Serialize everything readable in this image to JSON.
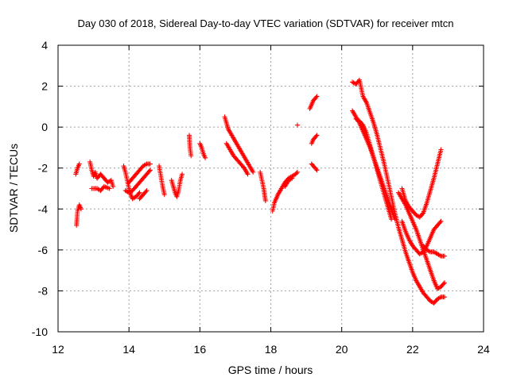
{
  "chart_data": {
    "type": "scatter",
    "title": "Day 030 of 2018, Sidereal Day-to-day VTEC variation (SDTVAR) for receiver mtcn",
    "xlabel": "GPS time / hours",
    "ylabel": "SDTVAR / TECUs",
    "xlim": [
      12,
      24
    ],
    "ylim": [
      -10,
      4
    ],
    "xticks": [
      12,
      14,
      16,
      18,
      20,
      22,
      24
    ],
    "yticks": [
      -10,
      -8,
      -6,
      -4,
      -2,
      0,
      2,
      4
    ],
    "xtick_labels": [
      "12",
      "14",
      "16",
      "18",
      "20",
      "22",
      "24"
    ],
    "ytick_labels": [
      "-10",
      "-8",
      "-6",
      "-4",
      "-2",
      "0",
      "2",
      "4"
    ],
    "grid": true,
    "marker": "+",
    "series": [
      {
        "name": "SDTVAR",
        "color": "#ff0000",
        "segments": [
          [
            [
              12.5,
              -2.3
            ],
            [
              12.55,
              -2.0
            ],
            [
              12.6,
              -1.8
            ]
          ],
          [
            [
              12.52,
              -4.8
            ],
            [
              12.55,
              -4.1
            ],
            [
              12.6,
              -3.8
            ],
            [
              12.65,
              -4.0
            ]
          ],
          [
            [
              12.9,
              -1.7
            ],
            [
              12.95,
              -2.1
            ],
            [
              13.0,
              -2.4
            ],
            [
              13.05,
              -2.2
            ],
            [
              13.1,
              -2.5
            ],
            [
              13.2,
              -2.3
            ],
            [
              13.3,
              -2.5
            ],
            [
              13.4,
              -2.7
            ],
            [
              13.5,
              -2.6
            ],
            [
              13.55,
              -2.9
            ]
          ],
          [
            [
              12.95,
              -3.0
            ],
            [
              13.1,
              -3.0
            ],
            [
              13.2,
              -3.1
            ],
            [
              13.3,
              -2.9
            ],
            [
              13.45,
              -3.0
            ]
          ],
          [
            [
              13.85,
              -1.9
            ],
            [
              13.9,
              -2.2
            ],
            [
              13.95,
              -2.6
            ],
            [
              14.0,
              -3.0
            ],
            [
              14.05,
              -3.3
            ],
            [
              14.1,
              -3.5
            ],
            [
              14.2,
              -3.4
            ],
            [
              14.3,
              -3.2
            ]
          ],
          [
            [
              13.9,
              -3.1
            ],
            [
              14.0,
              -3.2
            ],
            [
              14.1,
              -3.1
            ],
            [
              14.2,
              -2.9
            ],
            [
              14.3,
              -2.7
            ],
            [
              14.4,
              -2.5
            ],
            [
              14.5,
              -2.3
            ],
            [
              14.6,
              -2.1
            ]
          ],
          [
            [
              14.0,
              -2.7
            ],
            [
              14.1,
              -2.5
            ],
            [
              14.2,
              -2.3
            ],
            [
              14.3,
              -2.1
            ],
            [
              14.4,
              -1.9
            ],
            [
              14.5,
              -1.8
            ],
            [
              14.6,
              -1.8
            ]
          ],
          [
            [
              14.3,
              -3.5
            ],
            [
              14.4,
              -3.3
            ],
            [
              14.5,
              -3.1
            ]
          ],
          [
            [
              14.85,
              -1.9
            ],
            [
              14.9,
              -2.4
            ],
            [
              14.95,
              -2.9
            ],
            [
              15.0,
              -3.3
            ]
          ],
          [
            [
              15.2,
              -2.6
            ],
            [
              15.25,
              -2.9
            ],
            [
              15.3,
              -3.2
            ],
            [
              15.35,
              -3.4
            ],
            [
              15.4,
              -3.1
            ],
            [
              15.45,
              -2.6
            ],
            [
              15.5,
              -2.3
            ]
          ],
          [
            [
              15.7,
              -0.4
            ],
            [
              15.72,
              -1.0
            ],
            [
              15.75,
              -1.4
            ]
          ],
          [
            [
              16.0,
              -0.8
            ],
            [
              16.05,
              -1.0
            ],
            [
              16.1,
              -1.3
            ],
            [
              16.15,
              -1.5
            ]
          ],
          [
            [
              16.7,
              0.5
            ],
            [
              16.75,
              0.2
            ],
            [
              16.8,
              -0.1
            ],
            [
              16.9,
              -0.4
            ],
            [
              17.0,
              -0.7
            ],
            [
              17.1,
              -1.0
            ],
            [
              17.2,
              -1.3
            ],
            [
              17.3,
              -1.6
            ],
            [
              17.4,
              -1.9
            ],
            [
              17.5,
              -2.2
            ]
          ],
          [
            [
              16.75,
              -0.8
            ],
            [
              16.85,
              -1.1
            ],
            [
              16.95,
              -1.4
            ],
            [
              17.05,
              -1.6
            ],
            [
              17.15,
              -1.8
            ],
            [
              17.25,
              -2.0
            ],
            [
              17.35,
              -2.3
            ]
          ],
          [
            [
              17.7,
              -2.2
            ],
            [
              17.75,
              -2.6
            ],
            [
              17.8,
              -3.0
            ],
            [
              17.85,
              -3.6
            ]
          ],
          [
            [
              18.05,
              -4.1
            ],
            [
              18.1,
              -3.7
            ],
            [
              18.2,
              -3.3
            ],
            [
              18.3,
              -3.0
            ],
            [
              18.4,
              -2.7
            ],
            [
              18.5,
              -2.5
            ],
            [
              18.6,
              -2.4
            ],
            [
              18.7,
              -2.3
            ],
            [
              18.75,
              -2.2
            ]
          ],
          [
            [
              18.4,
              -2.9
            ],
            [
              18.5,
              -2.6
            ],
            [
              18.6,
              -2.5
            ]
          ],
          [
            [
              18.75,
              0.1
            ]
          ],
          [
            [
              19.1,
              0.9
            ],
            [
              19.15,
              1.1
            ],
            [
              19.2,
              1.3
            ],
            [
              19.3,
              1.5
            ]
          ],
          [
            [
              19.15,
              -0.8
            ],
            [
              19.2,
              -0.6
            ],
            [
              19.25,
              -0.5
            ],
            [
              19.3,
              -0.4
            ]
          ],
          [
            [
              19.15,
              -1.8
            ],
            [
              19.2,
              -1.9
            ],
            [
              19.25,
              -2.0
            ],
            [
              19.3,
              -2.1
            ]
          ],
          [
            [
              20.3,
              2.2
            ],
            [
              20.4,
              2.1
            ],
            [
              20.5,
              2.3
            ],
            [
              20.55,
              1.9
            ],
            [
              20.6,
              1.5
            ],
            [
              20.7,
              1.2
            ],
            [
              20.8,
              0.7
            ],
            [
              20.9,
              0.2
            ],
            [
              21.0,
              -0.4
            ],
            [
              21.1,
              -1.1
            ],
            [
              21.2,
              -1.8
            ],
            [
              21.3,
              -2.6
            ],
            [
              21.4,
              -3.4
            ],
            [
              21.5,
              -4.2
            ],
            [
              21.6,
              -4.9
            ],
            [
              21.7,
              -5.5
            ],
            [
              21.8,
              -6.1
            ],
            [
              21.9,
              -6.6
            ],
            [
              22.0,
              -7.1
            ],
            [
              22.1,
              -7.5
            ],
            [
              22.2,
              -7.8
            ],
            [
              22.3,
              -8.1
            ],
            [
              22.4,
              -8.3
            ],
            [
              22.5,
              -8.5
            ],
            [
              22.6,
              -8.6
            ],
            [
              22.7,
              -8.4
            ],
            [
              22.8,
              -8.3
            ],
            [
              22.9,
              -8.3
            ]
          ],
          [
            [
              20.3,
              0.8
            ],
            [
              20.4,
              0.5
            ],
            [
              20.5,
              0.2
            ],
            [
              20.6,
              -0.2
            ],
            [
              20.7,
              -0.6
            ],
            [
              20.8,
              -1.0
            ],
            [
              20.9,
              -1.5
            ],
            [
              21.0,
              -2.0
            ],
            [
              21.1,
              -2.5
            ],
            [
              21.2,
              -3.0
            ],
            [
              21.3,
              -3.5
            ],
            [
              21.4,
              -4.0
            ],
            [
              21.5,
              -4.5
            ]
          ],
          [
            [
              20.4,
              0.4
            ],
            [
              20.5,
              0.3
            ],
            [
              20.6,
              0.1
            ],
            [
              20.7,
              -0.3
            ],
            [
              20.8,
              -0.9
            ],
            [
              20.9,
              -1.5
            ],
            [
              21.0,
              -2.1
            ],
            [
              21.1,
              -2.7
            ],
            [
              21.2,
              -3.3
            ],
            [
              21.3,
              -3.9
            ],
            [
              21.4,
              -4.5
            ]
          ],
          [
            [
              21.7,
              -3.0
            ],
            [
              21.8,
              -3.6
            ],
            [
              21.9,
              -3.9
            ],
            [
              22.0,
              -4.1
            ],
            [
              22.1,
              -4.3
            ],
            [
              22.2,
              -4.4
            ],
            [
              22.3,
              -4.2
            ],
            [
              22.4,
              -3.7
            ],
            [
              22.5,
              -3.1
            ],
            [
              22.6,
              -2.5
            ],
            [
              22.7,
              -1.8
            ],
            [
              22.8,
              -1.1
            ]
          ],
          [
            [
              21.7,
              -4.6
            ],
            [
              21.8,
              -5.1
            ],
            [
              21.9,
              -5.5
            ],
            [
              22.0,
              -5.8
            ],
            [
              22.1,
              -6.0
            ],
            [
              22.2,
              -6.2
            ],
            [
              22.3,
              -6.1
            ],
            [
              22.4,
              -5.8
            ],
            [
              22.5,
              -5.4
            ],
            [
              22.6,
              -5.0
            ],
            [
              22.7,
              -4.8
            ],
            [
              22.8,
              -4.6
            ]
          ],
          [
            [
              22.3,
              -5.8
            ],
            [
              22.4,
              -6.0
            ],
            [
              22.5,
              -6.1
            ],
            [
              22.6,
              -6.1
            ],
            [
              22.7,
              -6.2
            ],
            [
              22.8,
              -6.3
            ],
            [
              22.9,
              -6.3
            ]
          ],
          [
            [
              21.6,
              -3.2
            ],
            [
              21.7,
              -3.5
            ],
            [
              21.8,
              -3.8
            ],
            [
              21.9,
              -4.2
            ],
            [
              22.0,
              -4.6
            ],
            [
              22.1,
              -5.0
            ],
            [
              22.2,
              -5.5
            ],
            [
              22.3,
              -6.0
            ],
            [
              22.4,
              -6.5
            ],
            [
              22.5,
              -7.0
            ],
            [
              22.6,
              -7.5
            ],
            [
              22.7,
              -7.9
            ],
            [
              22.8,
              -7.8
            ],
            [
              22.9,
              -7.6
            ]
          ]
        ]
      }
    ]
  }
}
